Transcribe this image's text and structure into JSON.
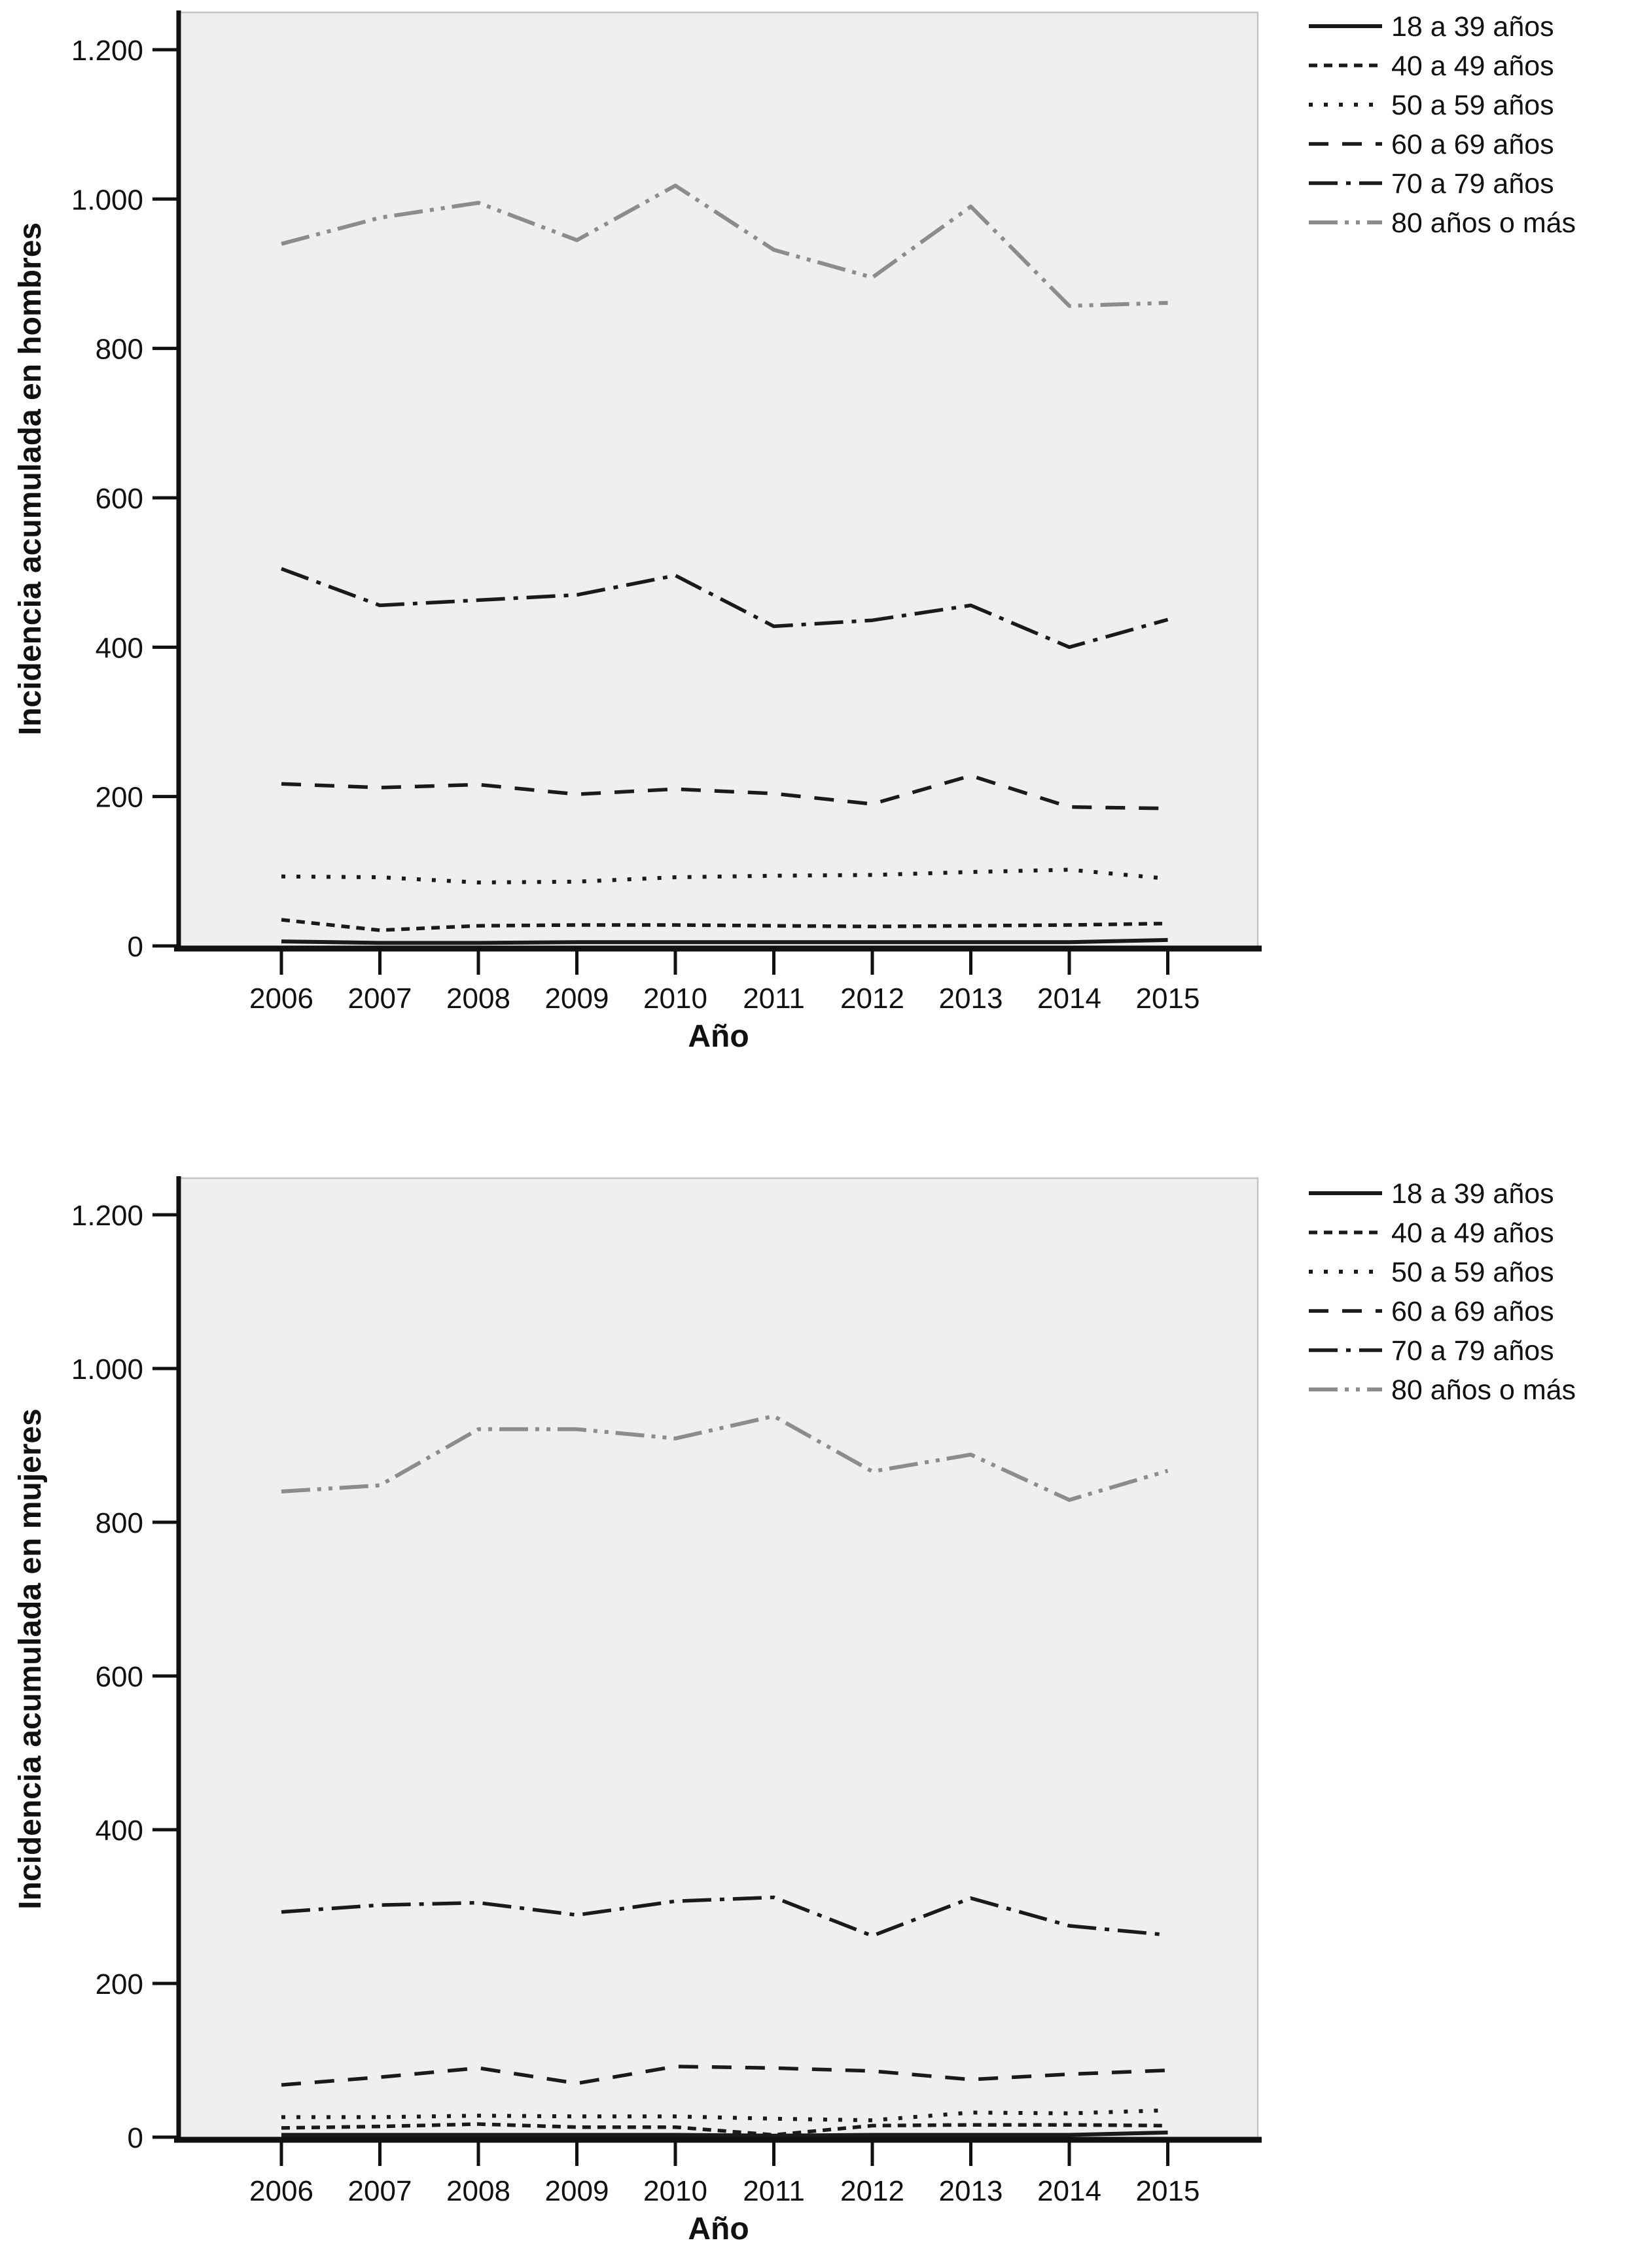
{
  "page": {
    "background": "#ffffff"
  },
  "chart_data": [
    {
      "type": "line",
      "title": "",
      "ylabel": "Incidencia acumulada en hombres",
      "xlabel": "Año",
      "categories": [
        "2006",
        "2007",
        "2008",
        "2009",
        "2010",
        "2011",
        "2012",
        "2013",
        "2014",
        "2015"
      ],
      "ylim": [
        0,
        1250
      ],
      "grid": false,
      "legend_position": "outside-top-right",
      "plot_bg": "#f0eff0",
      "yticks": [
        {
          "v": 0,
          "label": "0"
        },
        {
          "v": 200,
          "label": "200"
        },
        {
          "v": 400,
          "label": "400"
        },
        {
          "v": 600,
          "label": "600"
        },
        {
          "v": 800,
          "label": "800"
        },
        {
          "v": 1000,
          "label": "1.000"
        },
        {
          "v": 1200,
          "label": "1.200"
        }
      ],
      "series": [
        {
          "name": "18 a 39 años",
          "dash": "solid",
          "color": "#1a1a1a",
          "values": [
            6,
            4,
            4,
            5,
            5,
            5,
            5,
            5,
            5,
            8
          ]
        },
        {
          "name": "40 a 49 años",
          "dash": "dash-fine",
          "color": "#1a1a1a",
          "values": [
            35,
            21,
            27,
            28,
            28,
            27,
            26,
            27,
            28,
            30
          ]
        },
        {
          "name": "50 a 59 años",
          "dash": "dot",
          "color": "#1a1a1a",
          "values": [
            93,
            92,
            85,
            86,
            92,
            94,
            95,
            99,
            102,
            90
          ]
        },
        {
          "name": "60 a 69 años",
          "dash": "dash-long",
          "color": "#1a1a1a",
          "values": [
            217,
            212,
            216,
            203,
            210,
            204,
            190,
            228,
            186,
            184
          ]
        },
        {
          "name": "70 a 79 años",
          "dash": "dash-dot",
          "color": "#1a1a1a",
          "values": [
            505,
            456,
            463,
            470,
            496,
            428,
            436,
            456,
            400,
            437
          ]
        },
        {
          "name": "80 años o más",
          "dash": "dash-dot-dot",
          "color": "#8c8c8c",
          "values": [
            940,
            975,
            995,
            945,
            1018,
            932,
            895,
            990,
            857,
            861
          ]
        }
      ]
    },
    {
      "type": "line",
      "title": "",
      "ylabel": "Incidencia acumulada en mujeres",
      "xlabel": "Año",
      "categories": [
        "2006",
        "2007",
        "2008",
        "2009",
        "2010",
        "2011",
        "2012",
        "2013",
        "2014",
        "2015"
      ],
      "ylim": [
        0,
        1250
      ],
      "grid": false,
      "legend_position": "outside-top-right",
      "plot_bg": "#f0eff0",
      "yticks": [
        {
          "v": 0,
          "label": "0"
        },
        {
          "v": 200,
          "label": "200"
        },
        {
          "v": 400,
          "label": "400"
        },
        {
          "v": 600,
          "label": "600"
        },
        {
          "v": 800,
          "label": "800"
        },
        {
          "v": 1000,
          "label": "1.000"
        },
        {
          "v": 1200,
          "label": "1.200"
        }
      ],
      "series": [
        {
          "name": "18 a 39 años",
          "dash": "solid",
          "color": "#1a1a1a",
          "values": [
            3,
            3,
            3,
            3,
            3,
            2,
            3,
            3,
            3,
            6
          ]
        },
        {
          "name": "40 a 49 años",
          "dash": "dash-fine",
          "color": "#1a1a1a",
          "values": [
            12,
            14,
            17,
            13,
            13,
            3,
            15,
            16,
            16,
            15
          ]
        },
        {
          "name": "50 a 59 años",
          "dash": "dot",
          "color": "#1a1a1a",
          "values": [
            26,
            26,
            28,
            27,
            27,
            24,
            22,
            32,
            31,
            35
          ]
        },
        {
          "name": "60 a 69 años",
          "dash": "dash-long",
          "color": "#1a1a1a",
          "values": [
            68,
            78,
            90,
            70,
            92,
            90,
            86,
            75,
            82,
            87
          ]
        },
        {
          "name": "70 a 79 años",
          "dash": "dash-dot",
          "color": "#1a1a1a",
          "values": [
            293,
            302,
            305,
            289,
            307,
            312,
            262,
            311,
            275,
            263
          ]
        },
        {
          "name": "80 años o más",
          "dash": "dash-dot-dot",
          "color": "#8c8c8c",
          "values": [
            840,
            848,
            921,
            921,
            909,
            938,
            866,
            888,
            829,
            867
          ]
        }
      ]
    }
  ]
}
